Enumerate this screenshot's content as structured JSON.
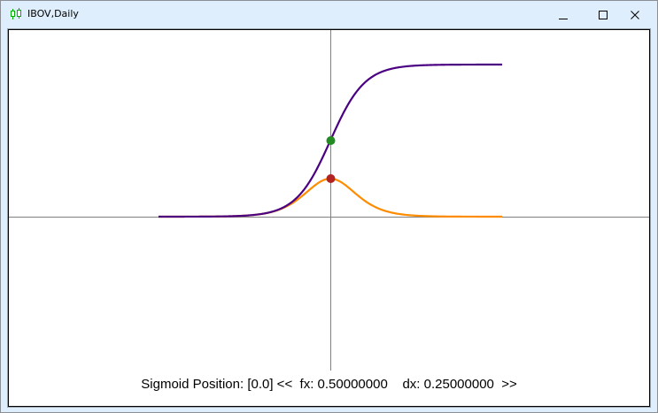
{
  "window": {
    "title": "IBOV,Daily",
    "icon": "candlestick-chart-icon",
    "controls": [
      "minimize-icon",
      "maximize-icon",
      "close-icon"
    ]
  },
  "status": {
    "label": "Sigmoid Position: [0.0] <<  fx: 0.50000000    dx: 0.25000000  >>"
  },
  "colors": {
    "sigmoid": "#4b0082",
    "derivative": "#ff8c00",
    "fx_point": "#228b22",
    "dx_point": "#b22222",
    "axes": "#808080"
  },
  "chart_data": {
    "type": "line",
    "xlim": [
      -10,
      10
    ],
    "ylim": [
      -1.15,
      1.2
    ],
    "series": [
      {
        "function": "sigmoid",
        "color": "#4b0082"
      },
      {
        "function": "sigmoid_derivative",
        "color": "#ff8c00"
      }
    ],
    "points": [
      {
        "x": 0.0,
        "y": 0.5,
        "color": "#228b22"
      },
      {
        "x": 0.0,
        "y": 0.25,
        "color": "#b22222"
      }
    ],
    "grid": false
  }
}
